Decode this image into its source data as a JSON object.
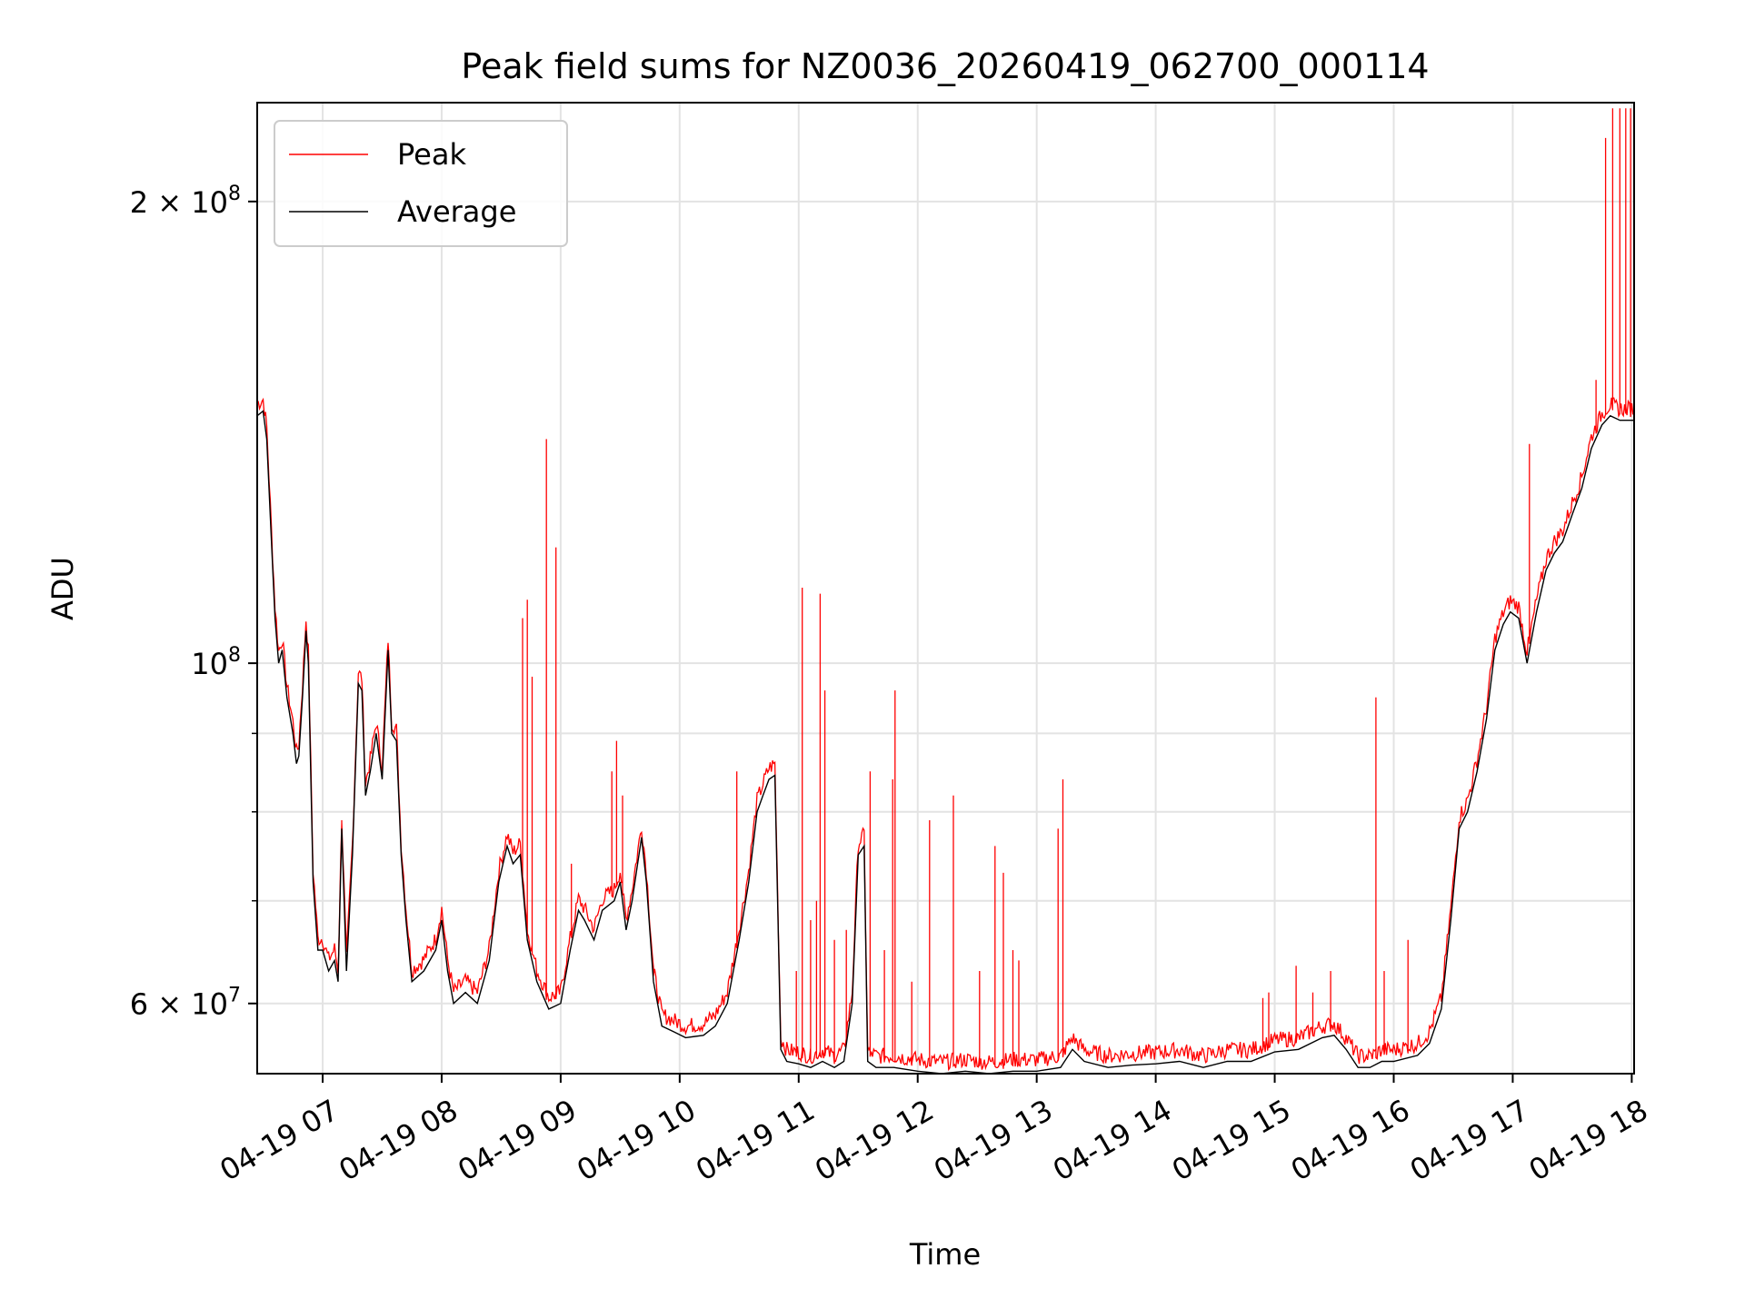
{
  "chart_data": {
    "type": "line",
    "title": "Peak field sums for NZ0036_20260419_062700_000114",
    "xlabel": "Time",
    "ylabel": "ADU",
    "yscale": "log",
    "xlim_hours": [
      6.45,
      18.02
    ],
    "ylim": [
      54000000,
      232000000
    ],
    "grid": true,
    "legend_position": "top-left",
    "x_ticks": [
      {
        "value": 7,
        "label": "04-19 07"
      },
      {
        "value": 8,
        "label": "04-19 08"
      },
      {
        "value": 9,
        "label": "04-19 09"
      },
      {
        "value": 10,
        "label": "04-19 10"
      },
      {
        "value": 11,
        "label": "04-19 11"
      },
      {
        "value": 12,
        "label": "04-19 12"
      },
      {
        "value": 13,
        "label": "04-19 13"
      },
      {
        "value": 14,
        "label": "04-19 14"
      },
      {
        "value": 15,
        "label": "04-19 15"
      },
      {
        "value": 16,
        "label": "04-19 16"
      },
      {
        "value": 17,
        "label": "04-19 17"
      },
      {
        "value": 18,
        "label": "04-19 18"
      }
    ],
    "y_ticks": [
      {
        "value": 60000000,
        "base": "6 × 10",
        "exp": "7"
      },
      {
        "value": 100000000,
        "base": "10",
        "exp": "8"
      },
      {
        "value": 200000000,
        "base": "2 × 10",
        "exp": "8"
      }
    ],
    "y_minor_ticks": [
      70000000,
      80000000,
      90000000
    ],
    "series": [
      {
        "name": "Peak",
        "color": "#ff0000",
        "spikes": [
          [
            7.16,
            79000000.0
          ],
          [
            8.68,
            107000000.0
          ],
          [
            8.72,
            110000000.0
          ],
          [
            8.76,
            98000000.0
          ],
          [
            8.88,
            140000000.0
          ],
          [
            8.96,
            119000000.0
          ],
          [
            9.09,
            74000000.0
          ],
          [
            9.43,
            85000000.0
          ],
          [
            9.47,
            89000000.0
          ],
          [
            9.52,
            82000000.0
          ],
          [
            9.78,
            62500000.0
          ],
          [
            10.48,
            85000000.0
          ],
          [
            10.98,
            63000000.0
          ],
          [
            11.03,
            112000000.0
          ],
          [
            11.1,
            68000000.0
          ],
          [
            11.15,
            70000000.0
          ],
          [
            11.18,
            111000000.0
          ],
          [
            11.22,
            96000000.0
          ],
          [
            11.3,
            66000000.0
          ],
          [
            11.4,
            67000000.0
          ],
          [
            11.6,
            85000000.0
          ],
          [
            11.72,
            65000000.0
          ],
          [
            11.79,
            84000000.0
          ],
          [
            11.81,
            96000000.0
          ],
          [
            11.95,
            62000000.0
          ],
          [
            12.1,
            79000000.0
          ],
          [
            12.3,
            82000000.0
          ],
          [
            12.52,
            63000000.0
          ],
          [
            12.65,
            76000000.0
          ],
          [
            12.72,
            73000000.0
          ],
          [
            12.8,
            65000000.0
          ],
          [
            12.85,
            64000000.0
          ],
          [
            13.18,
            78000000.0
          ],
          [
            13.22,
            84000000.0
          ],
          [
            14.9,
            60500000.0
          ],
          [
            14.95,
            61000000.0
          ],
          [
            15.18,
            63500000.0
          ],
          [
            15.32,
            61000000.0
          ],
          [
            15.47,
            63000000.0
          ],
          [
            15.85,
            95000000.0
          ],
          [
            15.92,
            63000000.0
          ],
          [
            16.12,
            66000000.0
          ],
          [
            17.14,
            139000000.0
          ],
          [
            17.7,
            153000000.0
          ],
          [
            17.78,
            220000000.0
          ],
          [
            17.84,
            230000000.0
          ],
          [
            17.9,
            230000000.0
          ],
          [
            17.95,
            230000000.0
          ],
          [
            17.99,
            230000000.0
          ]
        ]
      },
      {
        "name": "Average",
        "color": "#000000",
        "points": [
          [
            6.45,
            145000000.0
          ],
          [
            6.5,
            146000000.0
          ],
          [
            6.53,
            140000000.0
          ],
          [
            6.57,
            120000000.0
          ],
          [
            6.6,
            107000000.0
          ],
          [
            6.63,
            100000000.0
          ],
          [
            6.66,
            102000000.0
          ],
          [
            6.7,
            95000000.0
          ],
          [
            6.75,
            90000000.0
          ],
          [
            6.78,
            86000000.0
          ],
          [
            6.8,
            87000000.0
          ],
          [
            6.83,
            95000000.0
          ],
          [
            6.86,
            105000000.0
          ],
          [
            6.88,
            100000000.0
          ],
          [
            6.92,
            72000000.0
          ],
          [
            6.96,
            65000000.0
          ],
          [
            7.0,
            65000000.0
          ],
          [
            7.05,
            63000000.0
          ],
          [
            7.1,
            64000000.0
          ],
          [
            7.13,
            62000000.0
          ],
          [
            7.16,
            78000000.0
          ],
          [
            7.2,
            63000000.0
          ],
          [
            7.25,
            75000000.0
          ],
          [
            7.3,
            97000000.0
          ],
          [
            7.33,
            96000000.0
          ],
          [
            7.36,
            82000000.0
          ],
          [
            7.4,
            85000000.0
          ],
          [
            7.45,
            90000000.0
          ],
          [
            7.5,
            84000000.0
          ],
          [
            7.55,
            102000000.0
          ],
          [
            7.58,
            90000000.0
          ],
          [
            7.62,
            89000000.0
          ],
          [
            7.66,
            75000000.0
          ],
          [
            7.7,
            68000000.0
          ],
          [
            7.75,
            62000000.0
          ],
          [
            7.85,
            63000000.0
          ],
          [
            7.95,
            65000000.0
          ],
          [
            8.0,
            68000000.0
          ],
          [
            8.05,
            63000000.0
          ],
          [
            8.1,
            60000000.0
          ],
          [
            8.2,
            61000000.0
          ],
          [
            8.3,
            60000000.0
          ],
          [
            8.4,
            64000000.0
          ],
          [
            8.48,
            72000000.0
          ],
          [
            8.55,
            76000000.0
          ],
          [
            8.6,
            74000000.0
          ],
          [
            8.66,
            75000000.0
          ],
          [
            8.72,
            66000000.0
          ],
          [
            8.8,
            62000000.0
          ],
          [
            8.9,
            59500000.0
          ],
          [
            9.0,
            60000000.0
          ],
          [
            9.08,
            65000000.0
          ],
          [
            9.15,
            69000000.0
          ],
          [
            9.2,
            68000000.0
          ],
          [
            9.28,
            66000000.0
          ],
          [
            9.35,
            69000000.0
          ],
          [
            9.45,
            70000000.0
          ],
          [
            9.5,
            72000000.0
          ],
          [
            9.55,
            67000000.0
          ],
          [
            9.6,
            70000000.0
          ],
          [
            9.68,
            77000000.0
          ],
          [
            9.72,
            72000000.0
          ],
          [
            9.78,
            62000000.0
          ],
          [
            9.85,
            58000000.0
          ],
          [
            9.95,
            57500000.0
          ],
          [
            10.05,
            57000000.0
          ],
          [
            10.2,
            57200000.0
          ],
          [
            10.3,
            58000000.0
          ],
          [
            10.4,
            60000000.0
          ],
          [
            10.5,
            66000000.0
          ],
          [
            10.58,
            72000000.0
          ],
          [
            10.65,
            80000000.0
          ],
          [
            10.7,
            82000000.0
          ],
          [
            10.75,
            84000000.0
          ],
          [
            10.8,
            84500000.0
          ],
          [
            10.85,
            56000000.0
          ],
          [
            10.9,
            55000000.0
          ],
          [
            11.0,
            54800000.0
          ],
          [
            11.1,
            54500000.0
          ],
          [
            11.2,
            55000000.0
          ],
          [
            11.3,
            54500000.0
          ],
          [
            11.38,
            55000000.0
          ],
          [
            11.45,
            60000000.0
          ],
          [
            11.5,
            75000000.0
          ],
          [
            11.55,
            76000000.0
          ],
          [
            11.58,
            55000000.0
          ],
          [
            11.65,
            54500000.0
          ],
          [
            11.8,
            54500000.0
          ],
          [
            12.0,
            54200000.0
          ],
          [
            12.2,
            54000000.0
          ],
          [
            12.4,
            54200000.0
          ],
          [
            12.6,
            54000000.0
          ],
          [
            12.8,
            54200000.0
          ],
          [
            13.0,
            54200000.0
          ],
          [
            13.2,
            54500000.0
          ],
          [
            13.3,
            56000000.0
          ],
          [
            13.4,
            55000000.0
          ],
          [
            13.6,
            54500000.0
          ],
          [
            13.8,
            54700000.0
          ],
          [
            14.0,
            54800000.0
          ],
          [
            14.2,
            55000000.0
          ],
          [
            14.4,
            54500000.0
          ],
          [
            14.6,
            55000000.0
          ],
          [
            14.8,
            55000000.0
          ],
          [
            15.0,
            55800000.0
          ],
          [
            15.2,
            56000000.0
          ],
          [
            15.4,
            57000000.0
          ],
          [
            15.5,
            57200000.0
          ],
          [
            15.6,
            56000000.0
          ],
          [
            15.7,
            54500000.0
          ],
          [
            15.8,
            54500000.0
          ],
          [
            15.9,
            55000000.0
          ],
          [
            16.0,
            55000000.0
          ],
          [
            16.2,
            55500000.0
          ],
          [
            16.3,
            56500000.0
          ],
          [
            16.4,
            59500000.0
          ],
          [
            16.48,
            68000000.0
          ],
          [
            16.55,
            78000000.0
          ],
          [
            16.62,
            80000000.0
          ],
          [
            16.7,
            85000000.0
          ],
          [
            16.78,
            92000000.0
          ],
          [
            16.85,
            102000000.0
          ],
          [
            16.92,
            106000000.0
          ],
          [
            16.98,
            108000000.0
          ],
          [
            17.05,
            107000000.0
          ],
          [
            17.12,
            100000000.0
          ],
          [
            17.2,
            108000000.0
          ],
          [
            17.28,
            115000000.0
          ],
          [
            17.35,
            118000000.0
          ],
          [
            17.42,
            120000000.0
          ],
          [
            17.5,
            125000000.0
          ],
          [
            17.58,
            130000000.0
          ],
          [
            17.66,
            138000000.0
          ],
          [
            17.75,
            143000000.0
          ],
          [
            17.82,
            145000000.0
          ],
          [
            17.9,
            144000000.0
          ],
          [
            17.96,
            144000000.0
          ],
          [
            18.02,
            144000000.0
          ]
        ]
      }
    ]
  }
}
